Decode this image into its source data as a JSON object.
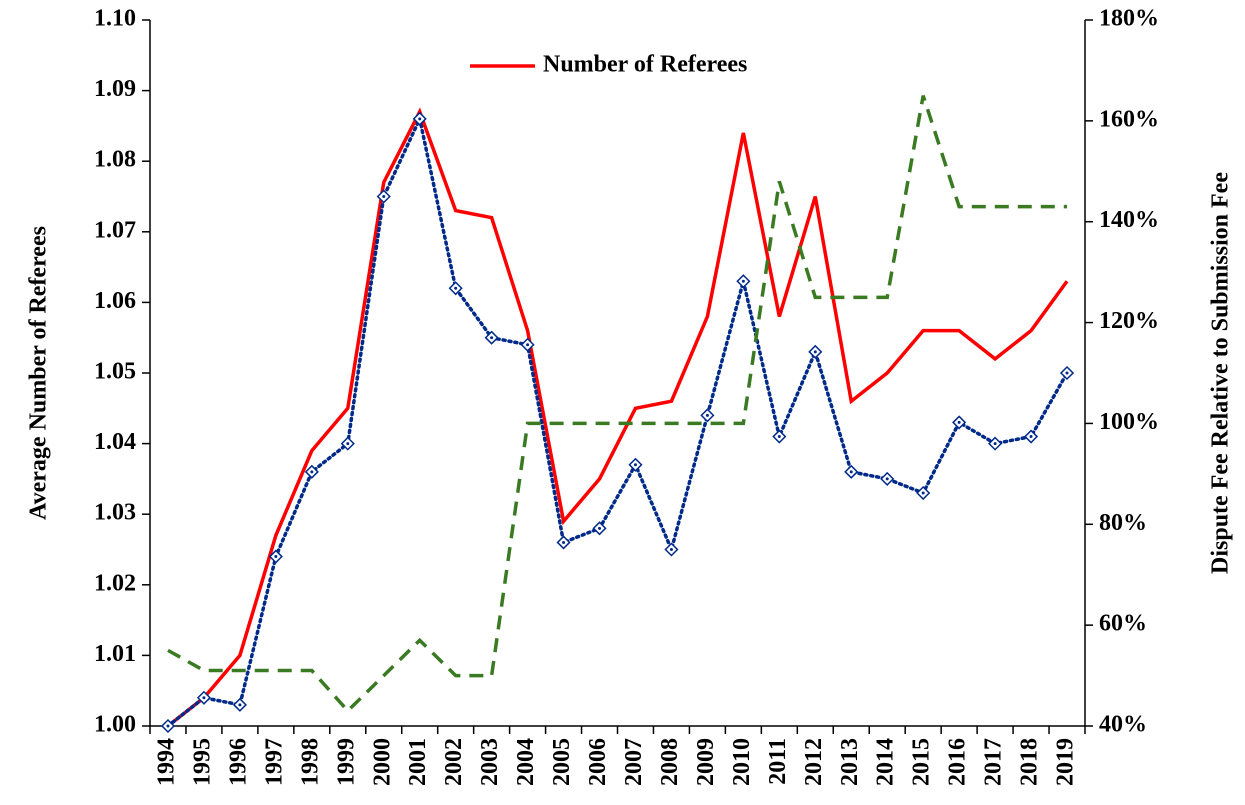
{
  "chart_data": {
    "type": "line",
    "y_label": "Average Number of Referees",
    "y2_label": "Dispute Fee Relative to Submission Fee",
    "categories": [
      "1994",
      "1995",
      "1996",
      "1997",
      "1998",
      "1999",
      "2000",
      "2001",
      "2002",
      "2003",
      "2004",
      "2005",
      "2006",
      "2007",
      "2008",
      "2009",
      "2010",
      "2011",
      "2012",
      "2013",
      "2014",
      "2015",
      "2016",
      "2017",
      "2018",
      "2019"
    ],
    "series": [
      {
        "name": "Number of Referees",
        "color": "#ff0000",
        "line_style": "solid",
        "values": [
          1.0,
          1.004,
          1.01,
          1.027,
          1.039,
          1.045,
          1.077,
          1.087,
          1.073,
          1.072,
          1.056,
          1.029,
          1.035,
          1.045,
          1.046,
          1.058,
          1.084,
          1.058,
          1.075,
          1.046,
          1.05,
          1.056,
          1.056,
          1.052,
          1.056,
          1.063
        ]
      },
      {
        "color": "#002a8a",
        "line_style": "dotted",
        "marker": "diamond",
        "values": [
          1.0,
          1.004,
          1.003,
          1.024,
          1.036,
          1.04,
          1.075,
          1.086,
          1.062,
          1.055,
          1.054,
          1.026,
          1.028,
          1.037,
          1.025,
          1.044,
          1.063,
          1.041,
          1.053,
          1.036,
          1.035,
          1.033,
          1.043,
          1.04,
          1.041,
          1.05
        ]
      },
      {
        "color": "#3a7a22",
        "line_style": "dashed",
        "axis": "y2",
        "values": [
          55,
          51,
          51,
          51,
          51,
          43,
          50,
          57,
          50,
          50,
          100,
          100,
          100,
          100,
          100,
          100,
          100,
          148,
          125,
          125,
          125,
          165,
          143,
          143,
          143,
          143
        ]
      }
    ],
    "ylim": [
      1.0,
      1.1
    ],
    "yticks": [
      {
        "value": 1.0,
        "label": "1.00"
      },
      1.01,
      1.02,
      1.03,
      1.04,
      1.05,
      1.06,
      1.07,
      1.08,
      1.09,
      {
        "value": 1.1,
        "label": "1.10"
      }
    ],
    "y2lim": [
      40,
      180
    ],
    "y2ticks": [
      {
        "value": 40,
        "label": "40%"
      },
      {
        "value": 60,
        "label": "60%"
      },
      {
        "value": 80,
        "label": "80%"
      },
      {
        "value": 100,
        "label": "100%"
      },
      {
        "value": 120,
        "label": "120%"
      },
      {
        "value": 140,
        "label": "140%"
      },
      {
        "value": 160,
        "label": "160%"
      },
      {
        "value": 180,
        "label": "180%"
      }
    ],
    "grid": false,
    "legend": "top"
  }
}
